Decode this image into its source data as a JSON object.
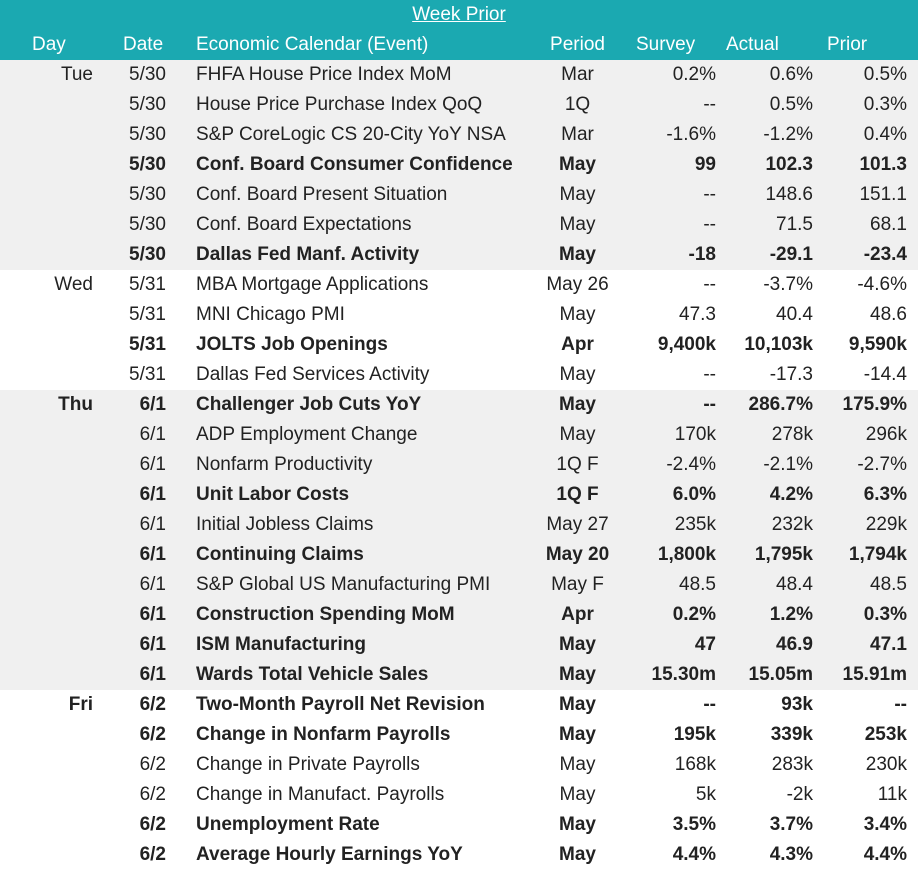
{
  "title": "Week Prior",
  "headers": {
    "day": "Day",
    "date": "Date",
    "event": "Economic Calendar (Event)",
    "period": "Period",
    "survey": "Survey",
    "actual": "Actual",
    "prior": "Prior"
  },
  "colors": {
    "header_bg": "#1ba9b1",
    "shade_bg": "#f0f0f0"
  },
  "rows": [
    {
      "day": "Tue",
      "date": "5/30",
      "event": "FHFA House Price Index MoM",
      "period": "Mar",
      "survey": "0.2%",
      "actual": "0.6%",
      "prior": "0.5%",
      "bold": false,
      "shade": true
    },
    {
      "day": "",
      "date": "5/30",
      "event": "House Price Purchase Index QoQ",
      "period": "1Q",
      "survey": "--",
      "actual": "0.5%",
      "prior": "0.3%",
      "bold": false,
      "shade": true
    },
    {
      "day": "",
      "date": "5/30",
      "event": "S&P CoreLogic CS 20-City YoY NSA",
      "period": "Mar",
      "survey": "-1.6%",
      "actual": "-1.2%",
      "prior": "0.4%",
      "bold": false,
      "shade": true
    },
    {
      "day": "",
      "date": "5/30",
      "event": "Conf. Board Consumer Confidence",
      "period": "May",
      "survey": "99",
      "actual": "102.3",
      "prior": "101.3",
      "bold": true,
      "shade": true
    },
    {
      "day": "",
      "date": "5/30",
      "event": "Conf. Board Present Situation",
      "period": "May",
      "survey": "--",
      "actual": "148.6",
      "prior": "151.1",
      "bold": false,
      "shade": true
    },
    {
      "day": "",
      "date": "5/30",
      "event": "Conf. Board Expectations",
      "period": "May",
      "survey": "--",
      "actual": "71.5",
      "prior": "68.1",
      "bold": false,
      "shade": true
    },
    {
      "day": "",
      "date": "5/30",
      "event": "Dallas Fed Manf. Activity",
      "period": "May",
      "survey": "-18",
      "actual": "-29.1",
      "prior": "-23.4",
      "bold": true,
      "shade": true
    },
    {
      "day": "Wed",
      "date": "5/31",
      "event": "MBA Mortgage Applications",
      "period": "May 26",
      "survey": "--",
      "actual": "-3.7%",
      "prior": "-4.6%",
      "bold": false,
      "shade": false
    },
    {
      "day": "",
      "date": "5/31",
      "event": "MNI Chicago PMI",
      "period": "May",
      "survey": "47.3",
      "actual": "40.4",
      "prior": "48.6",
      "bold": false,
      "shade": false
    },
    {
      "day": "",
      "date": "5/31",
      "event": "JOLTS Job Openings",
      "period": "Apr",
      "survey": "9,400k",
      "actual": "10,103k",
      "prior": "9,590k",
      "bold": true,
      "shade": false
    },
    {
      "day": "",
      "date": "5/31",
      "event": "Dallas Fed Services Activity",
      "period": "May",
      "survey": "--",
      "actual": "-17.3",
      "prior": "-14.4",
      "bold": false,
      "shade": false
    },
    {
      "day": "Thu",
      "date": "6/1",
      "event": "Challenger Job Cuts YoY",
      "period": "May",
      "survey": "--",
      "actual": "286.7%",
      "prior": "175.9%",
      "bold": true,
      "shade": true
    },
    {
      "day": "",
      "date": "6/1",
      "event": "ADP Employment Change",
      "period": "May",
      "survey": "170k",
      "actual": "278k",
      "prior": "296k",
      "bold": false,
      "shade": true
    },
    {
      "day": "",
      "date": "6/1",
      "event": "Nonfarm Productivity",
      "period": "1Q F",
      "survey": "-2.4%",
      "actual": "-2.1%",
      "prior": "-2.7%",
      "bold": false,
      "shade": true
    },
    {
      "day": "",
      "date": "6/1",
      "event": "Unit Labor Costs",
      "period": "1Q F",
      "survey": "6.0%",
      "actual": "4.2%",
      "prior": "6.3%",
      "bold": true,
      "shade": true
    },
    {
      "day": "",
      "date": "6/1",
      "event": "Initial Jobless Claims",
      "period": "May 27",
      "survey": "235k",
      "actual": "232k",
      "prior": "229k",
      "bold": false,
      "shade": true
    },
    {
      "day": "",
      "date": "6/1",
      "event": "Continuing Claims",
      "period": "May 20",
      "survey": "1,800k",
      "actual": "1,795k",
      "prior": "1,794k",
      "bold": true,
      "shade": true
    },
    {
      "day": "",
      "date": "6/1",
      "event": "S&P Global US Manufacturing PMI",
      "period": "May F",
      "survey": "48.5",
      "actual": "48.4",
      "prior": "48.5",
      "bold": false,
      "shade": true
    },
    {
      "day": "",
      "date": "6/1",
      "event": "Construction Spending MoM",
      "period": "Apr",
      "survey": "0.2%",
      "actual": "1.2%",
      "prior": "0.3%",
      "bold": true,
      "shade": true
    },
    {
      "day": "",
      "date": "6/1",
      "event": "ISM Manufacturing",
      "period": "May",
      "survey": "47",
      "actual": "46.9",
      "prior": "47.1",
      "bold": true,
      "shade": true
    },
    {
      "day": "",
      "date": "6/1",
      "event": "Wards Total Vehicle Sales",
      "period": "May",
      "survey": "15.30m",
      "actual": "15.05m",
      "prior": "15.91m",
      "bold": true,
      "shade": true
    },
    {
      "day": "Fri",
      "date": "6/2",
      "event": "Two-Month Payroll Net Revision",
      "period": "May",
      "survey": "--",
      "actual": "93k",
      "prior": "--",
      "bold": true,
      "shade": false
    },
    {
      "day": "",
      "date": "6/2",
      "event": "Change in Nonfarm Payrolls",
      "period": "May",
      "survey": "195k",
      "actual": "339k",
      "prior": "253k",
      "bold": true,
      "shade": false
    },
    {
      "day": "",
      "date": "6/2",
      "event": "Change in Private Payrolls",
      "period": "May",
      "survey": "168k",
      "actual": "283k",
      "prior": "230k",
      "bold": false,
      "shade": false
    },
    {
      "day": "",
      "date": "6/2",
      "event": "Change in Manufact. Payrolls",
      "period": "May",
      "survey": "5k",
      "actual": "-2k",
      "prior": "11k",
      "bold": false,
      "shade": false
    },
    {
      "day": "",
      "date": "6/2",
      "event": "Unemployment Rate",
      "period": "May",
      "survey": "3.5%",
      "actual": "3.7%",
      "prior": "3.4%",
      "bold": true,
      "shade": false
    },
    {
      "day": "",
      "date": "6/2",
      "event": "Average Hourly Earnings YoY",
      "period": "May",
      "survey": "4.4%",
      "actual": "4.3%",
      "prior": "4.4%",
      "bold": true,
      "shade": false
    }
  ]
}
